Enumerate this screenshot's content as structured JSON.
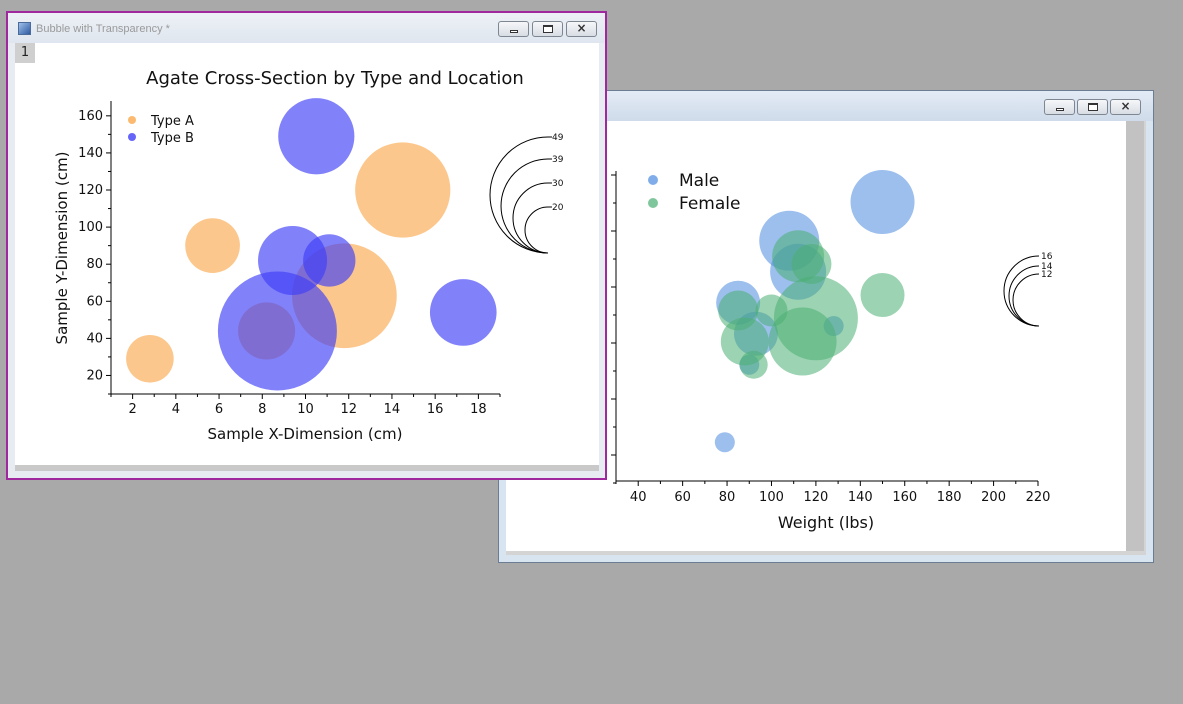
{
  "window_front": {
    "title": "Bubble with Transparency *",
    "layer_label": "1",
    "buttons": {
      "minimize": "minimize",
      "restore": "restore",
      "close": "close"
    }
  },
  "window_back": {
    "buttons": {
      "minimize": "minimize",
      "restore": "restore",
      "close": "close"
    }
  },
  "colors": {
    "type_a": "#fba94e",
    "type_b": "#3e3ef7",
    "male": "#4a8ae0",
    "female": "#4aae72",
    "desktop": "#a8a9a8"
  },
  "chart_data": [
    {
      "type": "scatter",
      "title": "Agate Cross-Section by Type and Location",
      "xlabel": "Sample X-Dimension (cm)",
      "ylabel": "Sample Y-Dimension (cm)",
      "xlim": [
        1,
        19
      ],
      "ylim": [
        10,
        168
      ],
      "xticks": [
        2,
        4,
        6,
        8,
        10,
        12,
        14,
        16,
        18
      ],
      "yticks": [
        20,
        40,
        60,
        80,
        100,
        120,
        140,
        160
      ],
      "legend_position": "top-left",
      "series": [
        {
          "name": "Type A",
          "color": "#fba94e",
          "points": [
            {
              "x": 2.8,
              "y": 29,
              "size": 20
            },
            {
              "x": 5.7,
              "y": 90,
              "size": 23
            },
            {
              "x": 11.8,
              "y": 63,
              "size": 44
            },
            {
              "x": 14.5,
              "y": 120,
              "size": 40
            },
            {
              "x": 8.2,
              "y": 44,
              "size": 24
            }
          ]
        },
        {
          "name": "Type B",
          "color": "#3e3ef7",
          "points": [
            {
              "x": 10.5,
              "y": 149,
              "size": 32
            },
            {
              "x": 9.4,
              "y": 82,
              "size": 29
            },
            {
              "x": 11.1,
              "y": 82,
              "size": 22
            },
            {
              "x": 8.7,
              "y": 44,
              "size": 50
            },
            {
              "x": 17.3,
              "y": 54,
              "size": 28
            }
          ]
        }
      ],
      "size_legend": [
        "49",
        "39",
        "30",
        "20"
      ]
    },
    {
      "type": "scatter",
      "xlabel": "Weight (lbs)",
      "ylabel": "",
      "xlim": [
        30,
        220
      ],
      "xticks": [
        40,
        60,
        80,
        100,
        120,
        140,
        160,
        180,
        200,
        220
      ],
      "legend_position": "top-left",
      "series": [
        {
          "name": "Male",
          "color": "#4a8ae0",
          "points": [
            {
              "x": 150,
              "y": 76,
              "size": 16
            },
            {
              "x": 108,
              "y": 71,
              "size": 15
            },
            {
              "x": 112,
              "y": 67,
              "size": 14
            },
            {
              "x": 85,
              "y": 63,
              "size": 11
            },
            {
              "x": 93,
              "y": 59,
              "size": 11
            },
            {
              "x": 90,
              "y": 55,
              "size": 5
            },
            {
              "x": 128,
              "y": 60,
              "size": 5
            },
            {
              "x": 79,
              "y": 45,
              "size": 5
            }
          ]
        },
        {
          "name": "Female",
          "color": "#4aae72",
          "points": [
            {
              "x": 150,
              "y": 64,
              "size": 11
            },
            {
              "x": 118,
              "y": 68,
              "size": 10
            },
            {
              "x": 112,
              "y": 69,
              "size": 13
            },
            {
              "x": 85,
              "y": 62,
              "size": 10
            },
            {
              "x": 88,
              "y": 58,
              "size": 12
            },
            {
              "x": 120,
              "y": 61,
              "size": 21
            },
            {
              "x": 114,
              "y": 58,
              "size": 17
            },
            {
              "x": 100,
              "y": 62,
              "size": 8
            },
            {
              "x": 92,
              "y": 55,
              "size": 7
            }
          ]
        }
      ],
      "size_legend": [
        "16",
        "14",
        "12"
      ]
    }
  ]
}
